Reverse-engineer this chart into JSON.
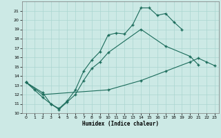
{
  "background_color": "#cce9e5",
  "grid_color": "#aad5d0",
  "line_color": "#1a6b5a",
  "xlabel": "Humidex (Indice chaleur)",
  "xlim": [
    -0.5,
    23.5
  ],
  "ylim": [
    10,
    22
  ],
  "xticks": [
    0,
    1,
    2,
    3,
    4,
    5,
    6,
    7,
    8,
    9,
    10,
    11,
    12,
    13,
    14,
    15,
    16,
    17,
    18,
    19,
    20,
    21,
    22,
    23
  ],
  "yticks": [
    10,
    11,
    12,
    13,
    14,
    15,
    16,
    17,
    18,
    19,
    20,
    21
  ],
  "series1_x": [
    0,
    1,
    2,
    3,
    4,
    5,
    6,
    7,
    8,
    9,
    10,
    11,
    12,
    13,
    14,
    15,
    16,
    17,
    18,
    19
  ],
  "series1_y": [
    13.3,
    12.5,
    11.7,
    11.0,
    10.5,
    11.3,
    12.5,
    14.5,
    15.7,
    16.6,
    18.4,
    18.6,
    18.5,
    19.5,
    21.3,
    21.3,
    20.5,
    20.7,
    19.8,
    19.0
  ],
  "series2_x": [
    0,
    2,
    3,
    4,
    5,
    6,
    7,
    8,
    9,
    10,
    14,
    17,
    20,
    21
  ],
  "series2_y": [
    13.3,
    12.2,
    11.0,
    10.4,
    11.2,
    12.0,
    13.5,
    14.8,
    15.5,
    16.5,
    19.0,
    17.2,
    16.1,
    15.2
  ],
  "series3_x": [
    0,
    2,
    10,
    14,
    17,
    20,
    21,
    22,
    23
  ],
  "series3_y": [
    13.3,
    12.0,
    12.5,
    13.5,
    14.5,
    15.5,
    15.9,
    15.5,
    15.1
  ]
}
